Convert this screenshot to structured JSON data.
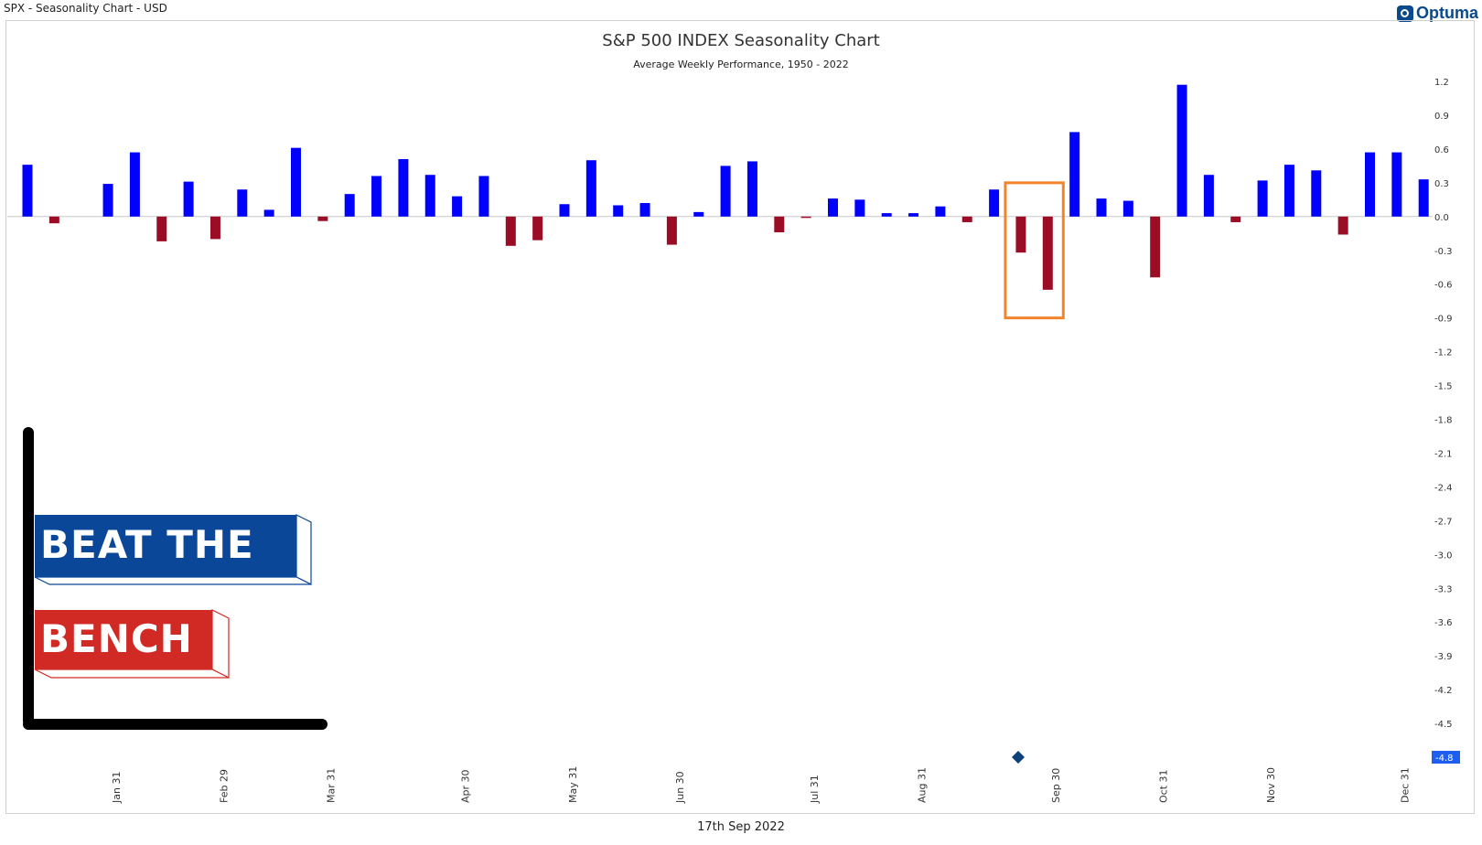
{
  "header": {
    "symbol_label": "SPX - Seasonality Chart - USD",
    "brand": "Optuma"
  },
  "footer": {
    "date": "17th Sep 2022"
  },
  "logo": {
    "line1": "BEAT THE",
    "line2": "BENCH"
  },
  "colors": {
    "positive": "#0000ff",
    "negative": "#9b0d25",
    "highlight": "#f4842a",
    "logo_blue": "#0a4799",
    "logo_red": "#d12a25",
    "current_marker": "#0f3f78"
  },
  "chart_data": {
    "type": "bar",
    "title": "S&P 500 INDEX Seasonality Chart",
    "subtitle": "Average Weekly Performance, 1950 - 2022",
    "xlabel": "",
    "ylabel": "",
    "ylim": [
      -4.8,
      1.2
    ],
    "y_ticks": [
      "1.2",
      "0.9",
      "0.6",
      "0.3",
      "0.0",
      "-0.3",
      "-0.6",
      "-0.9",
      "-1.2",
      "-1.5",
      "-1.8",
      "-2.1",
      "-2.4",
      "-2.7",
      "-3.0",
      "-3.3",
      "-3.6",
      "-3.9",
      "-4.2",
      "-4.5"
    ],
    "current_value_label": "-4.8",
    "x_ticks": [
      "Jan 31",
      "Feb 29",
      "Mar 31",
      "Apr 30",
      "May 31",
      "Jun 30",
      "Jul 31",
      "Aug 31",
      "Sep 30",
      "Oct 31",
      "Nov 30",
      "Dec 31"
    ],
    "x_tick_weeks": [
      4.3,
      8.3,
      12.3,
      17.3,
      21.3,
      25.3,
      30.3,
      34.3,
      39.3,
      43.3,
      47.3,
      52.3
    ],
    "weeks": [
      1,
      2,
      3,
      4,
      5,
      6,
      7,
      8,
      9,
      10,
      11,
      12,
      13,
      14,
      15,
      16,
      17,
      18,
      19,
      20,
      21,
      22,
      23,
      24,
      25,
      26,
      27,
      28,
      29,
      30,
      31,
      32,
      33,
      34,
      35,
      36,
      37,
      38,
      39,
      40,
      41,
      42,
      43,
      44,
      45,
      46,
      47,
      48,
      49,
      50,
      51,
      52,
      53
    ],
    "values": [
      0.46,
      -0.06,
      0,
      0.29,
      0.57,
      -0.22,
      0.31,
      -0.2,
      0.24,
      0.06,
      0.61,
      -0.04,
      0.2,
      0.36,
      0.51,
      0.37,
      0.18,
      0.36,
      -0.26,
      -0.21,
      0.11,
      0.5,
      0.1,
      0.12,
      -0.25,
      0.04,
      0.45,
      0.49,
      -0.14,
      -0.01,
      0.16,
      0.15,
      0.03,
      0.03,
      0.09,
      -0.05,
      0.24,
      -0.32,
      -0.65,
      0.75,
      0.16,
      0.14,
      -0.54,
      1.17,
      0.37,
      -0.05,
      0.32,
      0.46,
      0.41,
      -0.16,
      0.57,
      0.57,
      0.33
    ],
    "highlight_weeks": [
      38,
      39
    ],
    "current_week": 37.9,
    "grid": false,
    "legend": "none"
  }
}
